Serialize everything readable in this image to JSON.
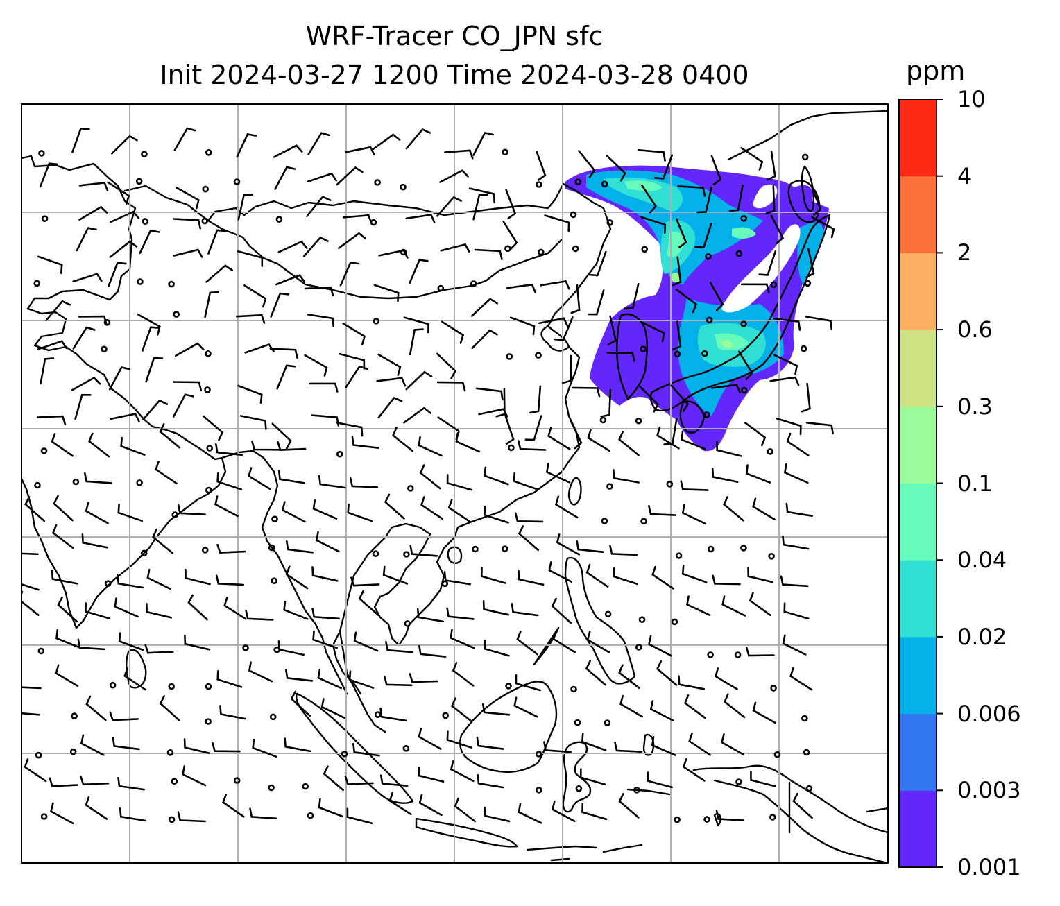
{
  "title": {
    "line1": "WRF-Tracer CO_JPN sfc",
    "line2": "Init 2024-03-27 1200 Time 2024-03-28 0400"
  },
  "colorbar": {
    "unit": "ppm",
    "levels": [
      "0.001",
      "0.003",
      "0.006",
      "0.02",
      "0.04",
      "0.1",
      "0.3",
      "0.6",
      "2",
      "4",
      "10"
    ],
    "colors": [
      "#6327fb",
      "#3277f1",
      "#02b1ea",
      "#31e0d4",
      "#68fcbc",
      "#9afb9a",
      "#cde282",
      "#fdb061",
      "#fd7039",
      "#ff2a15"
    ]
  },
  "map": {
    "field": "CO tracer concentration, surface",
    "overlays": [
      "coastlines",
      "lat-lon gridlines",
      "wind barbs"
    ],
    "plume_region": "Northeast Asia / Japan"
  }
}
